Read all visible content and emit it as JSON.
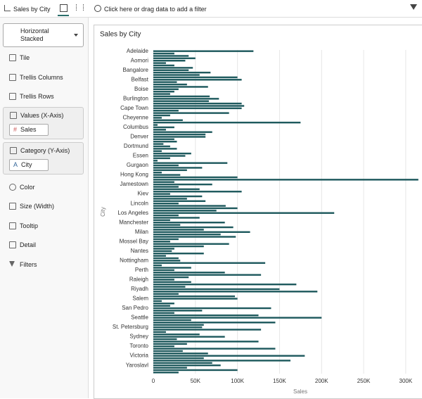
{
  "toolbar": {
    "title": "Sales by City",
    "filter_hint": "Click here or drag data to add a filter"
  },
  "panel": {
    "chart_type": "Horizontal Stacked",
    "items": [
      "Tile",
      "Trellis Columns",
      "Trellis Rows"
    ],
    "values_label": "Values (X-Axis)",
    "values_chip": "Sales",
    "category_label": "Category (Y-Axis)",
    "category_chip": "City",
    "more_items": [
      "Color",
      "Size (Width)",
      "Tooltip",
      "Detail",
      "Filters"
    ]
  },
  "chart_data": {
    "type": "bar",
    "orientation": "horizontal",
    "title": "Sales by City",
    "x_label": "Sales",
    "y_label": "City",
    "color": "#1f5a5e",
    "grid": true,
    "categories": [
      "Adelaide",
      null,
      null,
      null,
      "Aomori",
      null,
      null,
      null,
      "Bangalore",
      null,
      null,
      null,
      "Belfast",
      null,
      null,
      null,
      "Boise",
      null,
      null,
      null,
      "Burlington",
      null,
      null,
      null,
      "Cape Town",
      null,
      null,
      null,
      "Cheyenne",
      null,
      null,
      null,
      "Columbus",
      null,
      null,
      null,
      "Denver",
      null,
      null,
      null,
      "Dortmund",
      null,
      null,
      null,
      "Essen",
      null,
      null,
      null,
      "Gurgaon",
      null,
      null,
      null,
      "Hong Kong",
      null,
      null,
      null,
      "Jamestown",
      null,
      null,
      null,
      "Kiev",
      null,
      null,
      null,
      "Lincoln",
      null,
      null,
      null,
      "Los Angeles",
      null,
      null,
      null,
      "Manchester",
      null,
      null,
      null,
      "Milan",
      null,
      null,
      null,
      "Mossel Bay",
      null,
      null,
      null,
      "Nantes",
      null,
      null,
      null,
      "Nottingham",
      null,
      null,
      null,
      "Perth",
      null,
      null,
      null,
      "Raleigh",
      null,
      null,
      null,
      "Riyadh",
      null,
      null,
      null,
      "Salem",
      null,
      null,
      null,
      "San Pedro",
      null,
      null,
      null,
      "Seattle",
      null,
      null,
      null,
      "St. Petersburg",
      null,
      null,
      null,
      "Sydney",
      null,
      null,
      null,
      "Toronto",
      null,
      null,
      null,
      "Victoria",
      null,
      null,
      null,
      "Yaroslavl",
      null,
      null,
      null
    ],
    "values": [
      119000,
      25000,
      42000,
      50000,
      38000,
      15000,
      25000,
      47000,
      42000,
      68000,
      55000,
      100000,
      105000,
      28000,
      40000,
      65000,
      30000,
      25000,
      20000,
      67000,
      78000,
      66000,
      105000,
      108000,
      105000,
      30000,
      90000,
      20000,
      10000,
      35000,
      175000,
      5000,
      25000,
      15000,
      70000,
      62000,
      62000,
      25000,
      28000,
      12000,
      20000,
      28000,
      10000,
      45000,
      38000,
      20000,
      5000,
      88000,
      30000,
      58000,
      40000,
      10000,
      32000,
      100000,
      315000,
      25000,
      70000,
      30000,
      55000,
      105000,
      20000,
      58000,
      40000,
      62000,
      30000,
      86000,
      100000,
      75000,
      215000,
      30000,
      55000,
      20000,
      85000,
      32000,
      95000,
      60000,
      115000,
      80000,
      98000,
      30000,
      20000,
      90000,
      60000,
      25000,
      22000,
      60000,
      15000,
      30000,
      32000,
      133000,
      10000,
      45000,
      25000,
      85000,
      128000,
      42000,
      25000,
      45000,
      170000,
      38000,
      150000,
      195000,
      30000,
      97000,
      100000,
      10000,
      25000,
      20000,
      140000,
      58000,
      25000,
      125000,
      200000,
      45000,
      145000,
      60000,
      58000,
      128000,
      15000,
      55000,
      85000,
      28000,
      125000,
      40000,
      25000,
      145000,
      35000,
      65000,
      180000,
      60000,
      163000,
      70000,
      80000,
      40000,
      100000,
      30000
    ],
    "xlim": [
      0,
      316000
    ],
    "xticks": [
      0,
      {
        "value": 50000,
        "label": "50K"
      },
      {
        "value": 100000,
        "label": "100K"
      },
      {
        "value": 150000,
        "label": "150K"
      },
      {
        "value": 200000,
        "label": "200K"
      },
      {
        "value": 250000,
        "label": "250K"
      },
      {
        "value": 300000,
        "label": "300K"
      }
    ]
  }
}
